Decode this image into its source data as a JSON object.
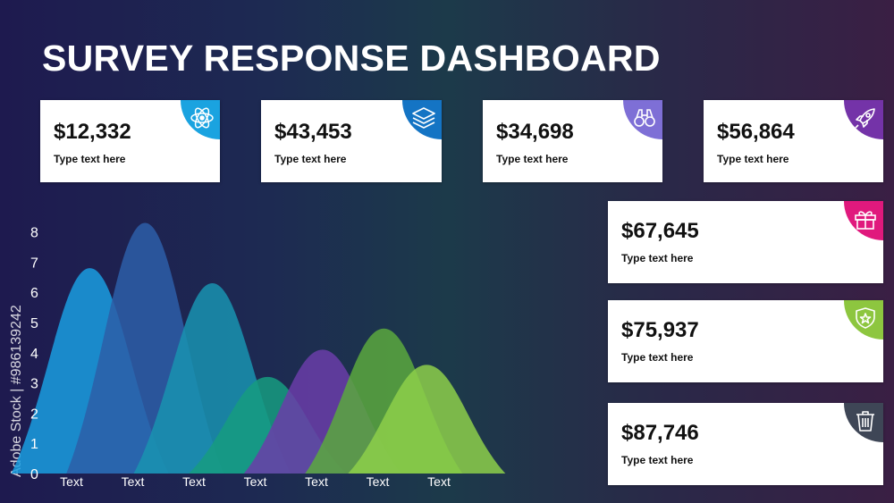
{
  "header": {
    "title": "SURVEY RESPONSE DASHBOARD"
  },
  "watermark": "Adobe Stock | #986139242",
  "cards": [
    {
      "value": "$12,332",
      "label": "Type text here",
      "icon": "atom-icon",
      "color": "#1aa3e0"
    },
    {
      "value": "$43,453",
      "label": "Type text here",
      "icon": "layers-icon",
      "color": "#1474c4"
    },
    {
      "value": "$34,698",
      "label": "Type text here",
      "icon": "binoculars-icon",
      "color": "#7e6fd6"
    },
    {
      "value": "$56,864",
      "label": "Type text here",
      "icon": "rocket-icon",
      "color": "#7433a8"
    },
    {
      "value": "$67,645",
      "label": "Type text here",
      "icon": "gift-icon",
      "color": "#e0197d"
    },
    {
      "value": "$75,937",
      "label": "Type text here",
      "icon": "shield-star-icon",
      "color": "#8dc63f"
    },
    {
      "value": "$87,746",
      "label": "Type text here",
      "icon": "trash-icon",
      "color": "#3e4656"
    }
  ],
  "chart_data": {
    "type": "area",
    "categories": [
      "Text",
      "Text",
      "Text",
      "Text",
      "Text",
      "Text",
      "Text"
    ],
    "ylim": [
      0,
      8
    ],
    "yticks": [
      0,
      1,
      2,
      3,
      4,
      5,
      6,
      7,
      8
    ],
    "grid": false,
    "series": [
      {
        "peak_x": 1.3,
        "peak": 6.8,
        "color": "#1a9ee0"
      },
      {
        "peak_x": 2.2,
        "peak": 8.3,
        "color": "#2d5ea8"
      },
      {
        "peak_x": 3.3,
        "peak": 6.3,
        "color": "#1993b0"
      },
      {
        "peak_x": 4.2,
        "peak": 3.2,
        "color": "#169c80"
      },
      {
        "peak_x": 5.1,
        "peak": 4.1,
        "color": "#6a3da8"
      },
      {
        "peak_x": 6.1,
        "peak": 4.8,
        "color": "#5aa83e"
      },
      {
        "peak_x": 6.8,
        "peak": 3.6,
        "color": "#8dcf4a"
      }
    ]
  }
}
